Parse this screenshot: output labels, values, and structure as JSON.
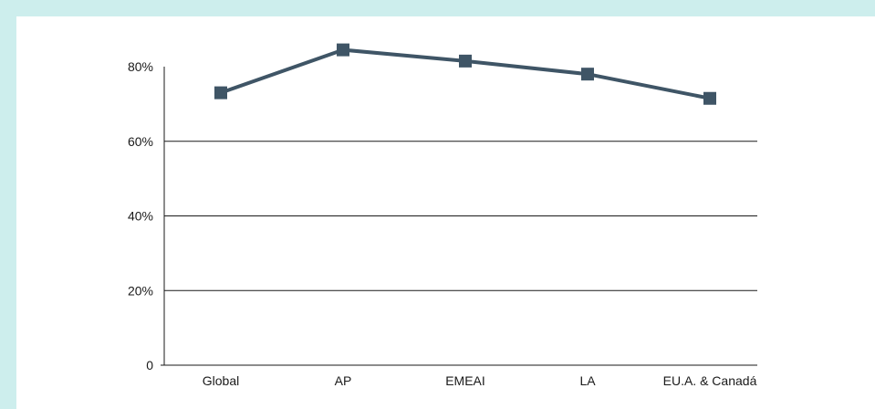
{
  "chart_data": {
    "type": "line",
    "categories": [
      "Global",
      "AP",
      "EMEAI",
      "LA",
      "EU.A. & Canadá"
    ],
    "series": [
      {
        "values": [
          73,
          84.5,
          81.5,
          78,
          71.5
        ]
      }
    ],
    "y_ticks": [
      "0",
      "20%",
      "40%",
      "60%",
      "80%"
    ],
    "ylim": [
      0,
      80
    ],
    "grid": true,
    "colors": {
      "line": "#3f5566",
      "background": "#cdeeed",
      "grid": "#1a1a1a"
    }
  }
}
